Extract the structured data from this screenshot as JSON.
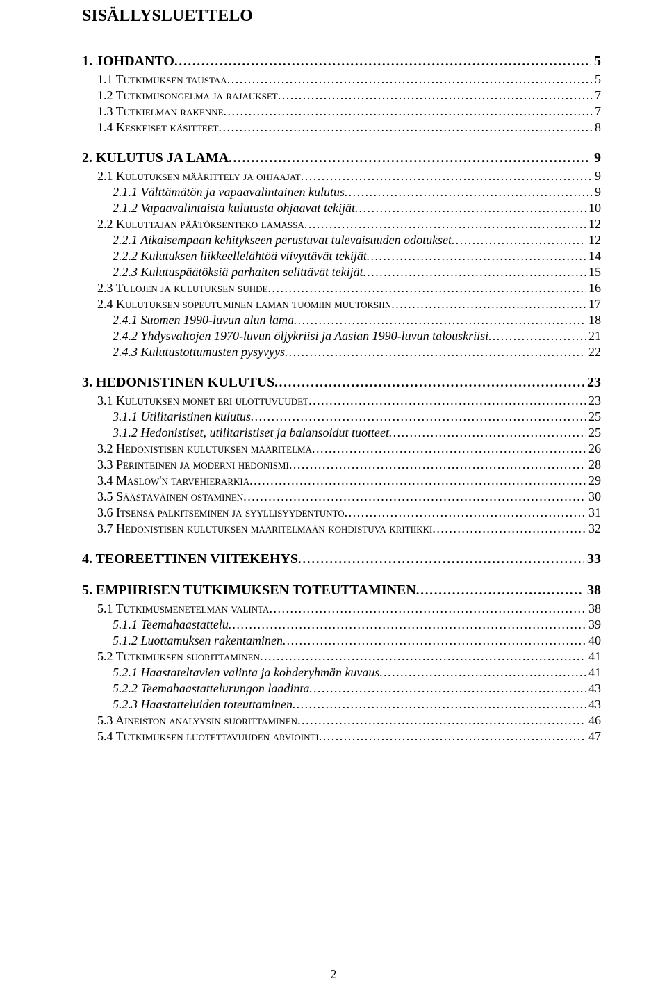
{
  "title": "SISÄLLYSLUETTELO",
  "page_number": "2",
  "toc": [
    {
      "level": 1,
      "label": "1. JOHDANTO",
      "page": "5"
    },
    {
      "level": 2,
      "label": "1.1 Tutkimuksen taustaa",
      "page": "5"
    },
    {
      "level": 2,
      "label": "1.2 Tutkimusongelma ja rajaukset",
      "page": "7"
    },
    {
      "level": 2,
      "label": "1.3 Tutkielman rakenne",
      "page": "7"
    },
    {
      "level": 2,
      "label": "1.4 Keskeiset käsitteet",
      "page": "8"
    },
    {
      "level": 1,
      "label": "2. KULUTUS JA LAMA",
      "page": "9"
    },
    {
      "level": 2,
      "label": "2.1 Kulutuksen määrittely ja ohjaajat",
      "page": "9"
    },
    {
      "level": 3,
      "label": "2.1.1 Välttämätön ja vapaavalintainen kulutus",
      "page": "9"
    },
    {
      "level": 3,
      "label": "2.1.2 Vapaavalintaista kulutusta ohjaavat tekijät",
      "page": "10"
    },
    {
      "level": 2,
      "label": "2.2 Kuluttajan päätöksenteko lamassa",
      "page": "12"
    },
    {
      "level": 3,
      "label": "2.2.1 Aikaisempaan kehitykseen perustuvat tulevaisuuden odotukset",
      "page": "12"
    },
    {
      "level": 3,
      "label": "2.2.2 Kulutuksen liikkeellelähtöä viivyttävät tekijät",
      "page": "14"
    },
    {
      "level": 3,
      "label": "2.2.3 Kulutuspäätöksiä parhaiten selittävät tekijät",
      "page": "15"
    },
    {
      "level": 2,
      "label": "2.3 Tulojen ja kulutuksen suhde",
      "page": "16"
    },
    {
      "level": 2,
      "label": "2.4 Kulutuksen sopeutuminen laman tuomiin muutoksiin",
      "page": "17"
    },
    {
      "level": 3,
      "label": "2.4.1 Suomen 1990-luvun alun lama",
      "page": "18"
    },
    {
      "level": 3,
      "label": "2.4.2 Yhdysvaltojen 1970-luvun öljykriisi ja Aasian 1990-luvun talouskriisi",
      "page": "21"
    },
    {
      "level": 3,
      "label": "2.4.3 Kulutustottumusten pysyvyys",
      "page": "22"
    },
    {
      "level": 1,
      "label": "3. HEDONISTINEN KULUTUS",
      "page": "23"
    },
    {
      "level": 2,
      "label": "3.1 Kulutuksen monet eri ulottuvuudet",
      "page": "23"
    },
    {
      "level": 3,
      "label": "3.1.1 Utilitaristinen kulutus",
      "page": "25"
    },
    {
      "level": 3,
      "label": "3.1.2 Hedonistiset, utilitaristiset ja balansoidut tuotteet",
      "page": "25"
    },
    {
      "level": 2,
      "label": "3.2 Hedonistisen kulutuksen määritelmä",
      "page": "26"
    },
    {
      "level": 2,
      "label": "3.3 Perinteinen ja moderni hedonismi",
      "page": "28"
    },
    {
      "level": 2,
      "label": "3.4 Maslow'n tarvehierarkia",
      "page": "29"
    },
    {
      "level": 2,
      "label": "3.5 Säästäväinen ostaminen",
      "page": "30"
    },
    {
      "level": 2,
      "label": "3.6 Itsensä palkitseminen ja syyllisyydentunto",
      "page": "31"
    },
    {
      "level": 2,
      "label": "3.7 Hedonistisen kulutuksen määritelmään kohdistuva kritiikki",
      "page": "32"
    },
    {
      "level": 1,
      "label": "4. TEOREETTINEN VIITEKEHYS",
      "page": "33"
    },
    {
      "level": 1,
      "label": "5. EMPIIRISEN TUTKIMUKSEN TOTEUTTAMINEN",
      "page": "38"
    },
    {
      "level": 2,
      "label": "5.1 Tutkimusmenetelmän valinta",
      "page": "38"
    },
    {
      "level": 3,
      "label": "5.1.1 Teemahaastattelu",
      "page": "39"
    },
    {
      "level": 3,
      "label": "5.1.2 Luottamuksen rakentaminen",
      "page": "40"
    },
    {
      "level": 2,
      "label": "5.2 Tutkimuksen suorittaminen",
      "page": "41"
    },
    {
      "level": 3,
      "label": "5.2.1 Haastateltavien valinta ja kohderyhmän kuvaus",
      "page": "41"
    },
    {
      "level": 3,
      "label": "5.2.2 Teemahaastattelurungon laadinta",
      "page": "43"
    },
    {
      "level": 3,
      "label": "5.2.3 Haastatteluiden toteuttaminen",
      "page": "43"
    },
    {
      "level": 2,
      "label": "5.3 Aineiston analyysin suorittaminen",
      "page": "46"
    },
    {
      "level": 2,
      "label": "5.4 Tutkimuksen luotettavuuden arviointi",
      "page": "47"
    }
  ]
}
